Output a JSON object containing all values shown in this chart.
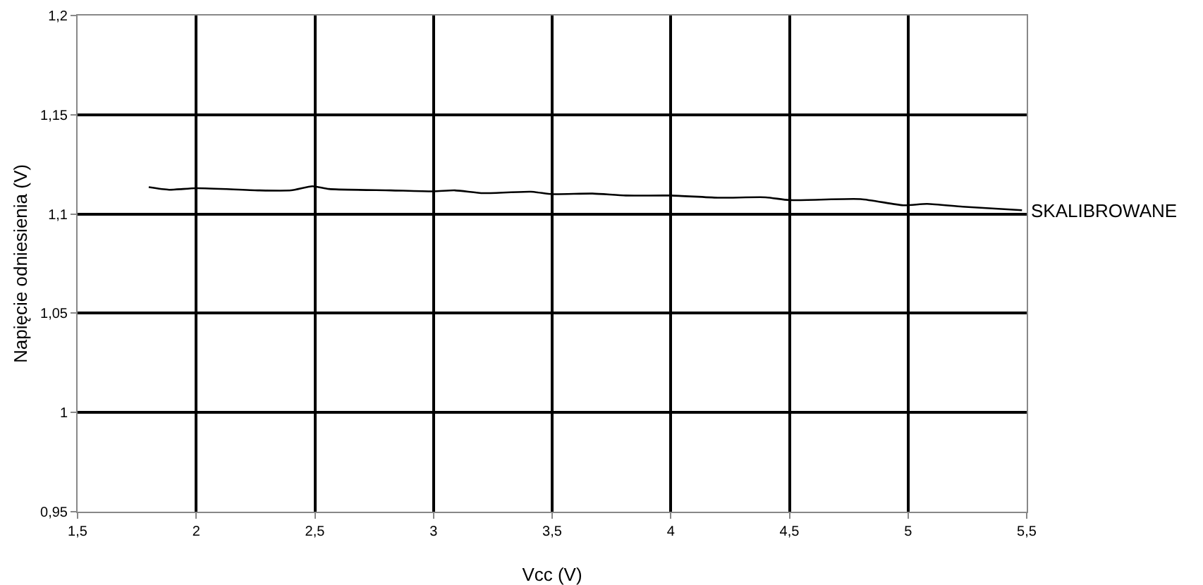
{
  "chart_data": {
    "type": "line",
    "xlabel": "Vcc (V)",
    "ylabel": "Napięcie odniesienia (V)",
    "xlim": [
      1.5,
      5.5
    ],
    "xticks": [
      {
        "value": 1.5,
        "label": "1,5"
      },
      2,
      {
        "value": 2.5,
        "label": "2,5"
      },
      3,
      {
        "value": 3.5,
        "label": "3,5"
      },
      4,
      {
        "value": 4.5,
        "label": "4,5"
      },
      5,
      {
        "value": 5.5,
        "label": "5,5"
      }
    ],
    "ylim": [
      0.95,
      1.2
    ],
    "yticks": [
      {
        "value": 0.95,
        "label": "0,95"
      },
      1,
      {
        "value": 1.05,
        "label": "1,05"
      },
      {
        "value": 1.1,
        "label": "1,1"
      },
      {
        "value": 1.15,
        "label": "1,15"
      },
      {
        "value": 1.2,
        "label": "1,2"
      }
    ],
    "grid": true,
    "legend": false,
    "marker": "none",
    "line_style": "solid",
    "series": [
      {
        "name": "SKALIBROWANE",
        "color": "#000000",
        "x": [
          1.8,
          1.886,
          2.0,
          2.26,
          2.4,
          2.49,
          2.56,
          2.82,
          3.0,
          3.09,
          3.21,
          3.41,
          3.5,
          3.67,
          3.81,
          4.0,
          4.2,
          4.4,
          4.5,
          4.8,
          4.98,
          5.08,
          5.23,
          5.48
        ],
        "values": [
          1.1135,
          1.1122,
          1.113,
          1.1119,
          1.1119,
          1.114,
          1.1126,
          1.1119,
          1.1114,
          1.1119,
          1.1105,
          1.1112,
          1.11,
          1.1103,
          1.1093,
          1.1093,
          1.1082,
          1.1084,
          1.107,
          1.1075,
          1.1044,
          1.1051,
          1.1037,
          1.1019
        ]
      }
    ]
  }
}
